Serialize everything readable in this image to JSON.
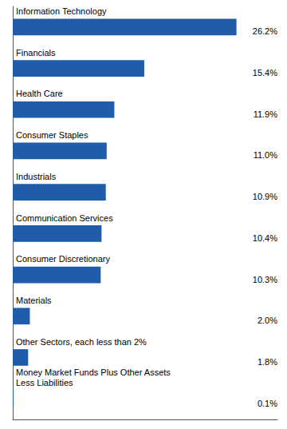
{
  "chart_data": {
    "type": "bar",
    "orientation": "horizontal",
    "categories": [
      "Information Technology",
      "Financials",
      "Health Care",
      "Consumer Staples",
      "Industrials",
      "Communication Services",
      "Consumer Discretionary",
      "Materials",
      "Other Sectors, each less than 2%",
      "Money Market Funds Plus Other Assets\nLess Liabilities"
    ],
    "values": [
      26.2,
      15.4,
      11.9,
      11.0,
      10.9,
      10.4,
      10.3,
      2.0,
      1.8,
      0.1
    ],
    "value_labels": [
      "26.2%",
      "15.4%",
      "11.9%",
      "11.0%",
      "10.9%",
      "10.4%",
      "10.3%",
      "2.0%",
      "1.8%",
      "0.1%"
    ],
    "color": "#1F5DAA",
    "xlim": [
      0,
      31
    ],
    "xticks": [],
    "grid": false,
    "data_labels": true,
    "tick_labels": "y"
  }
}
